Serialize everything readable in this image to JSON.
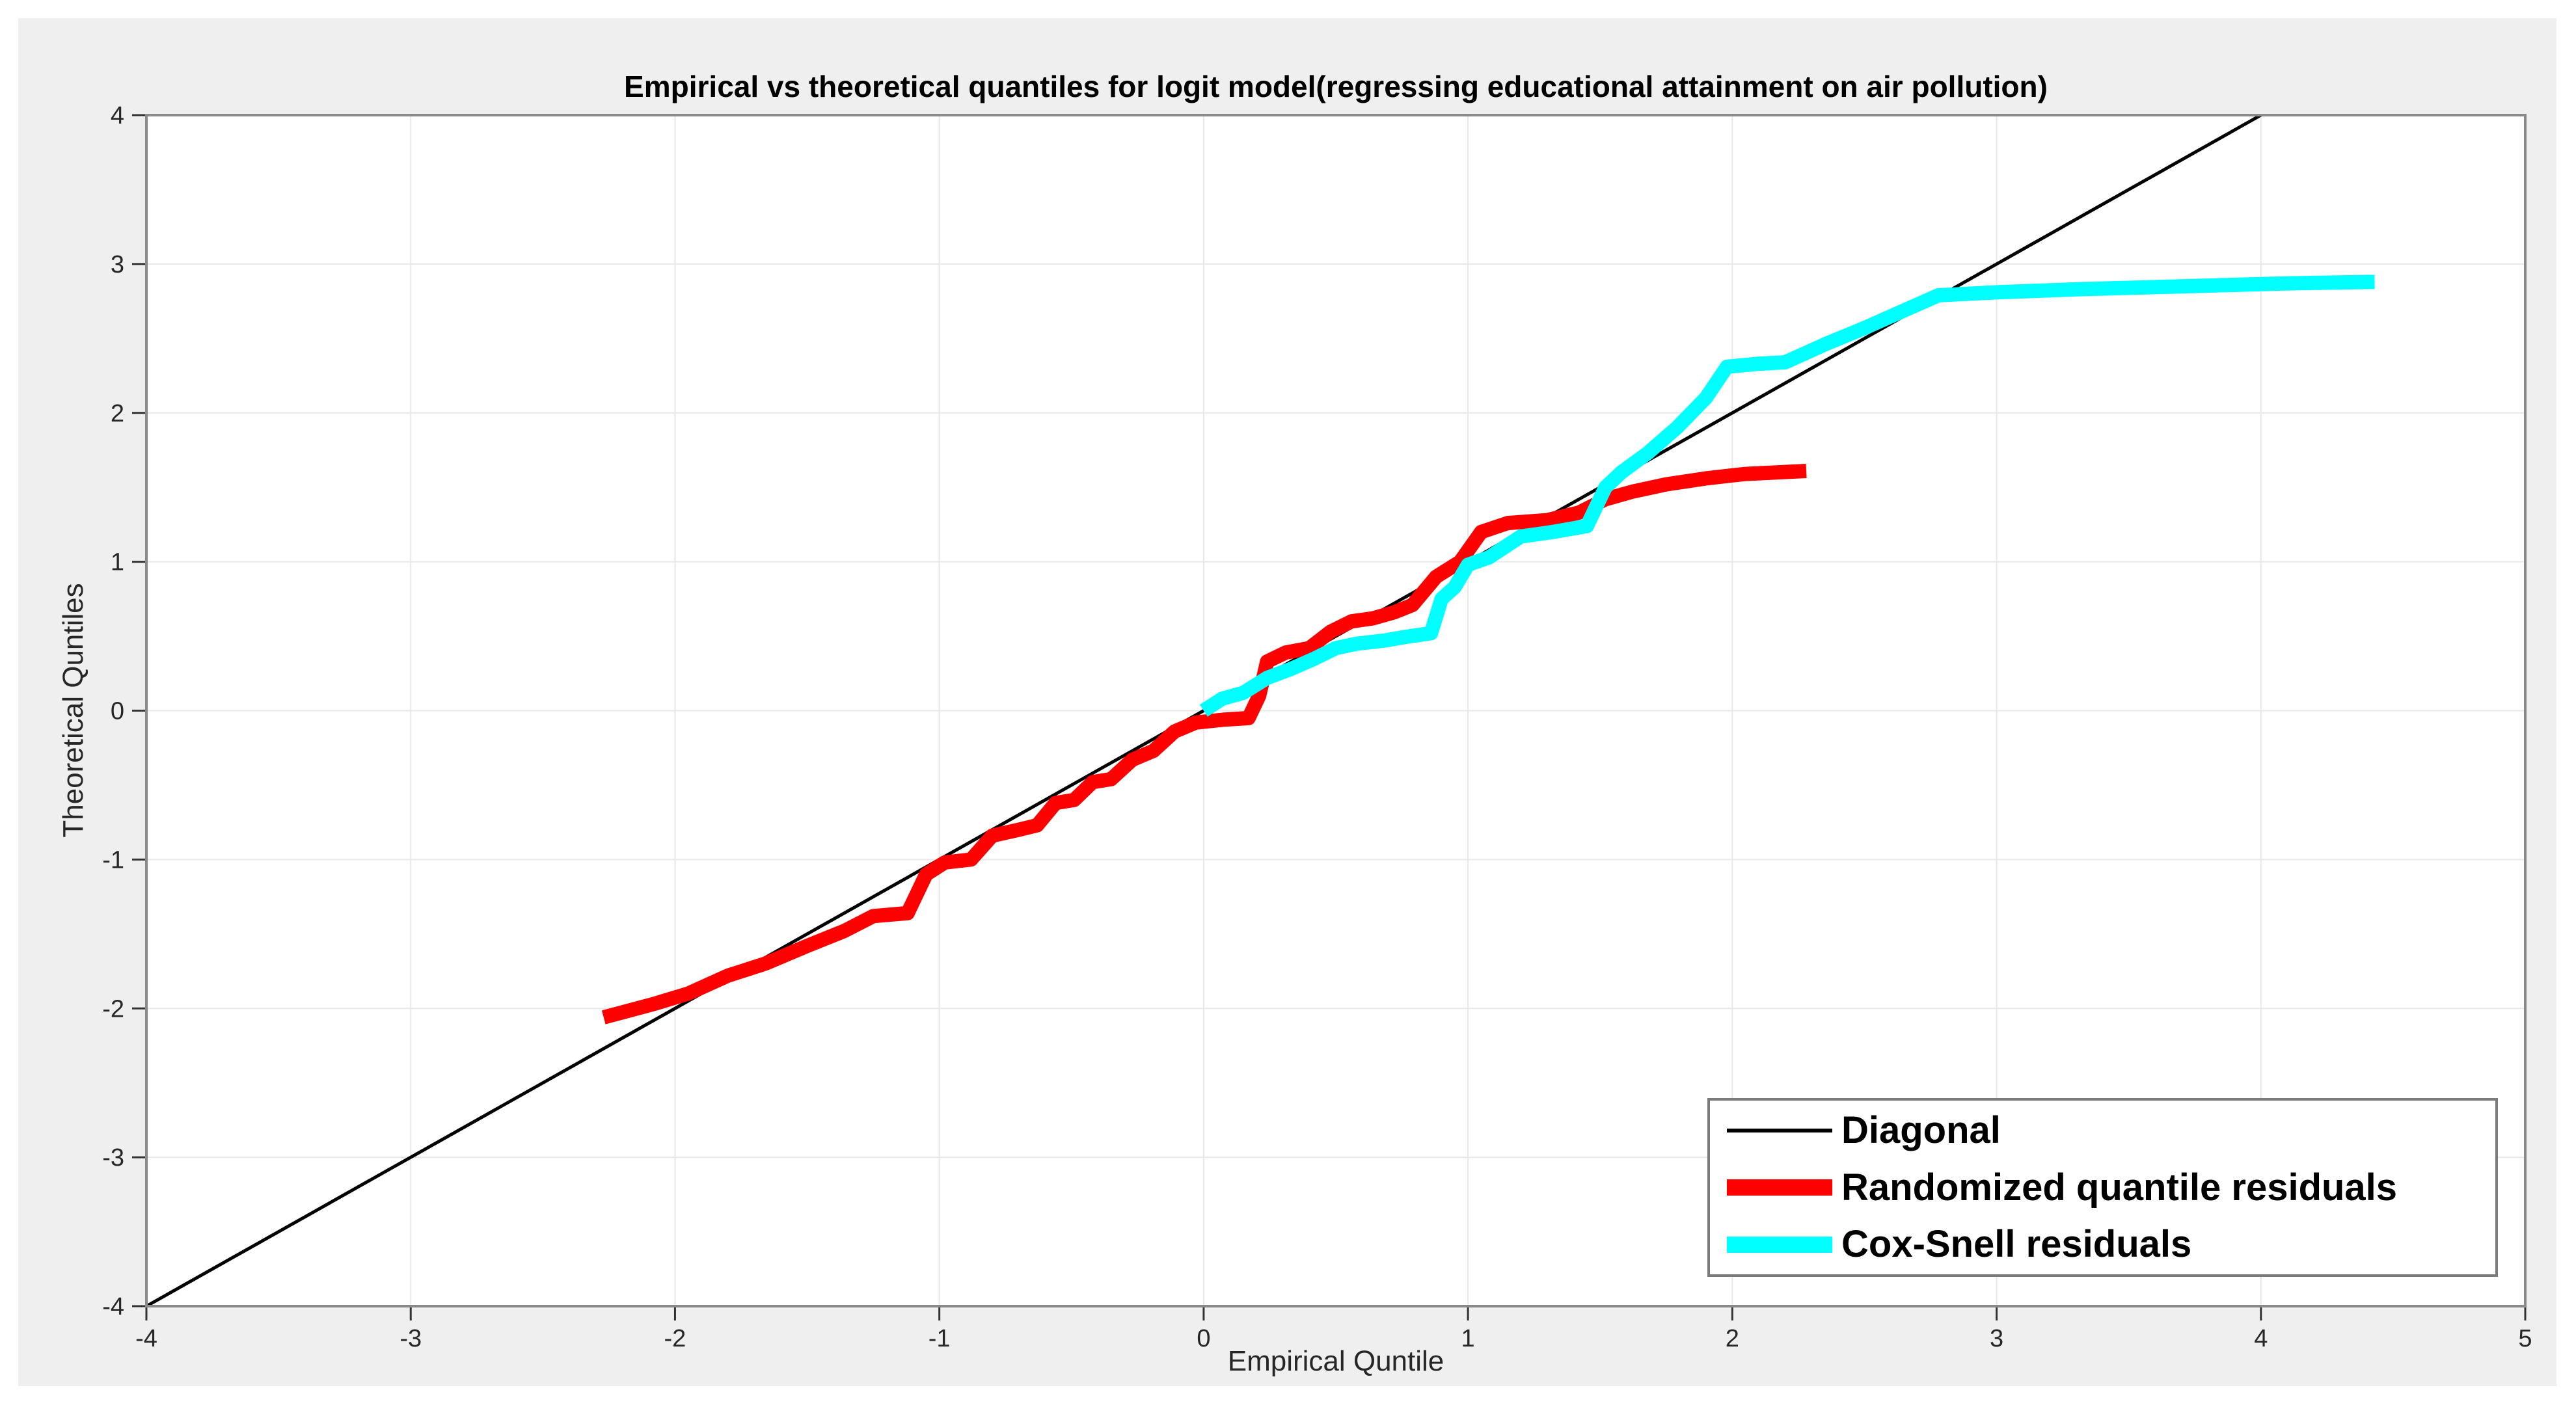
{
  "figure": {
    "page_background": "#ffffff",
    "figure_background": "#efefef",
    "plot_background": "#ffffff",
    "frame_color": "#8a8a8a",
    "grid_color": "#e8e8e8",
    "tick_color": "#333333"
  },
  "chart_data": {
    "type": "line",
    "title": "Empirical vs theoretical quantiles for logit model(regressing educational attainment on air pollution)",
    "xlabel": "Empirical Quntile",
    "ylabel": "Theoretical Quntiles",
    "xlim": [
      -4,
      5
    ],
    "ylim": [
      -4,
      4
    ],
    "x_ticks": [
      -4,
      -3,
      -2,
      -1,
      0,
      1,
      2,
      3,
      4,
      5
    ],
    "y_ticks": [
      -4,
      -3,
      -2,
      -1,
      0,
      1,
      2,
      3,
      4
    ],
    "grid": true,
    "legend_position": "lower right",
    "series": [
      {
        "name": "Diagonal",
        "color": "#000000",
        "width": 5,
        "points": [
          [
            -4,
            -4
          ],
          [
            4,
            4
          ]
        ]
      },
      {
        "name": "Randomized quantile residuals",
        "color": "#ff0000",
        "width": 22,
        "points": [
          [
            -2.27,
            -2.06
          ],
          [
            -2.08,
            -1.97
          ],
          [
            -1.95,
            -1.9
          ],
          [
            -1.8,
            -1.78
          ],
          [
            -1.66,
            -1.7
          ],
          [
            -1.5,
            -1.58
          ],
          [
            -1.36,
            -1.48
          ],
          [
            -1.25,
            -1.38
          ],
          [
            -1.12,
            -1.36
          ],
          [
            -1.05,
            -1.1
          ],
          [
            -0.98,
            -1.02
          ],
          [
            -0.88,
            -1.0
          ],
          [
            -0.8,
            -0.84
          ],
          [
            -0.7,
            -0.8
          ],
          [
            -0.63,
            -0.77
          ],
          [
            -0.56,
            -0.62
          ],
          [
            -0.49,
            -0.6
          ],
          [
            -0.42,
            -0.48
          ],
          [
            -0.35,
            -0.46
          ],
          [
            -0.27,
            -0.33
          ],
          [
            -0.19,
            -0.27
          ],
          [
            -0.11,
            -0.14
          ],
          [
            -0.03,
            -0.08
          ],
          [
            0.08,
            -0.06
          ],
          [
            0.17,
            -0.05
          ],
          [
            0.21,
            0.1
          ],
          [
            0.24,
            0.33
          ],
          [
            0.31,
            0.39
          ],
          [
            0.4,
            0.42
          ],
          [
            0.48,
            0.53
          ],
          [
            0.56,
            0.6
          ],
          [
            0.64,
            0.62
          ],
          [
            0.72,
            0.66
          ],
          [
            0.79,
            0.71
          ],
          [
            0.88,
            0.9
          ],
          [
            0.97,
            1.0
          ],
          [
            1.05,
            1.2
          ],
          [
            1.15,
            1.26
          ],
          [
            1.3,
            1.28
          ],
          [
            1.42,
            1.33
          ],
          [
            1.52,
            1.42
          ],
          [
            1.62,
            1.47
          ],
          [
            1.75,
            1.52
          ],
          [
            1.9,
            1.56
          ],
          [
            2.05,
            1.59
          ],
          [
            2.28,
            1.61
          ]
        ]
      },
      {
        "name": "Cox-Snell residuals",
        "color": "#00ffff",
        "width": 22,
        "points": [
          [
            0.0,
            0.0
          ],
          [
            0.07,
            0.08
          ],
          [
            0.15,
            0.12
          ],
          [
            0.24,
            0.22
          ],
          [
            0.33,
            0.28
          ],
          [
            0.42,
            0.35
          ],
          [
            0.5,
            0.42
          ],
          [
            0.58,
            0.45
          ],
          [
            0.68,
            0.47
          ],
          [
            0.78,
            0.5
          ],
          [
            0.86,
            0.52
          ],
          [
            0.9,
            0.75
          ],
          [
            0.95,
            0.83
          ],
          [
            1.0,
            0.98
          ],
          [
            1.08,
            1.03
          ],
          [
            1.2,
            1.17
          ],
          [
            1.32,
            1.2
          ],
          [
            1.45,
            1.24
          ],
          [
            1.52,
            1.5
          ],
          [
            1.58,
            1.6
          ],
          [
            1.68,
            1.73
          ],
          [
            1.79,
            1.9
          ],
          [
            1.9,
            2.1
          ],
          [
            1.98,
            2.31
          ],
          [
            2.1,
            2.33
          ],
          [
            2.2,
            2.34
          ],
          [
            2.35,
            2.46
          ],
          [
            2.5,
            2.57
          ],
          [
            2.64,
            2.68
          ],
          [
            2.78,
            2.79
          ],
          [
            3.0,
            2.81
          ],
          [
            3.3,
            2.83
          ],
          [
            3.7,
            2.85
          ],
          [
            4.1,
            2.87
          ],
          [
            4.43,
            2.88
          ]
        ]
      }
    ]
  },
  "legend": {
    "items": [
      {
        "label": "Diagonal"
      },
      {
        "label": "Randomized quantile residuals"
      },
      {
        "label": "Cox-Snell residuals"
      }
    ]
  }
}
